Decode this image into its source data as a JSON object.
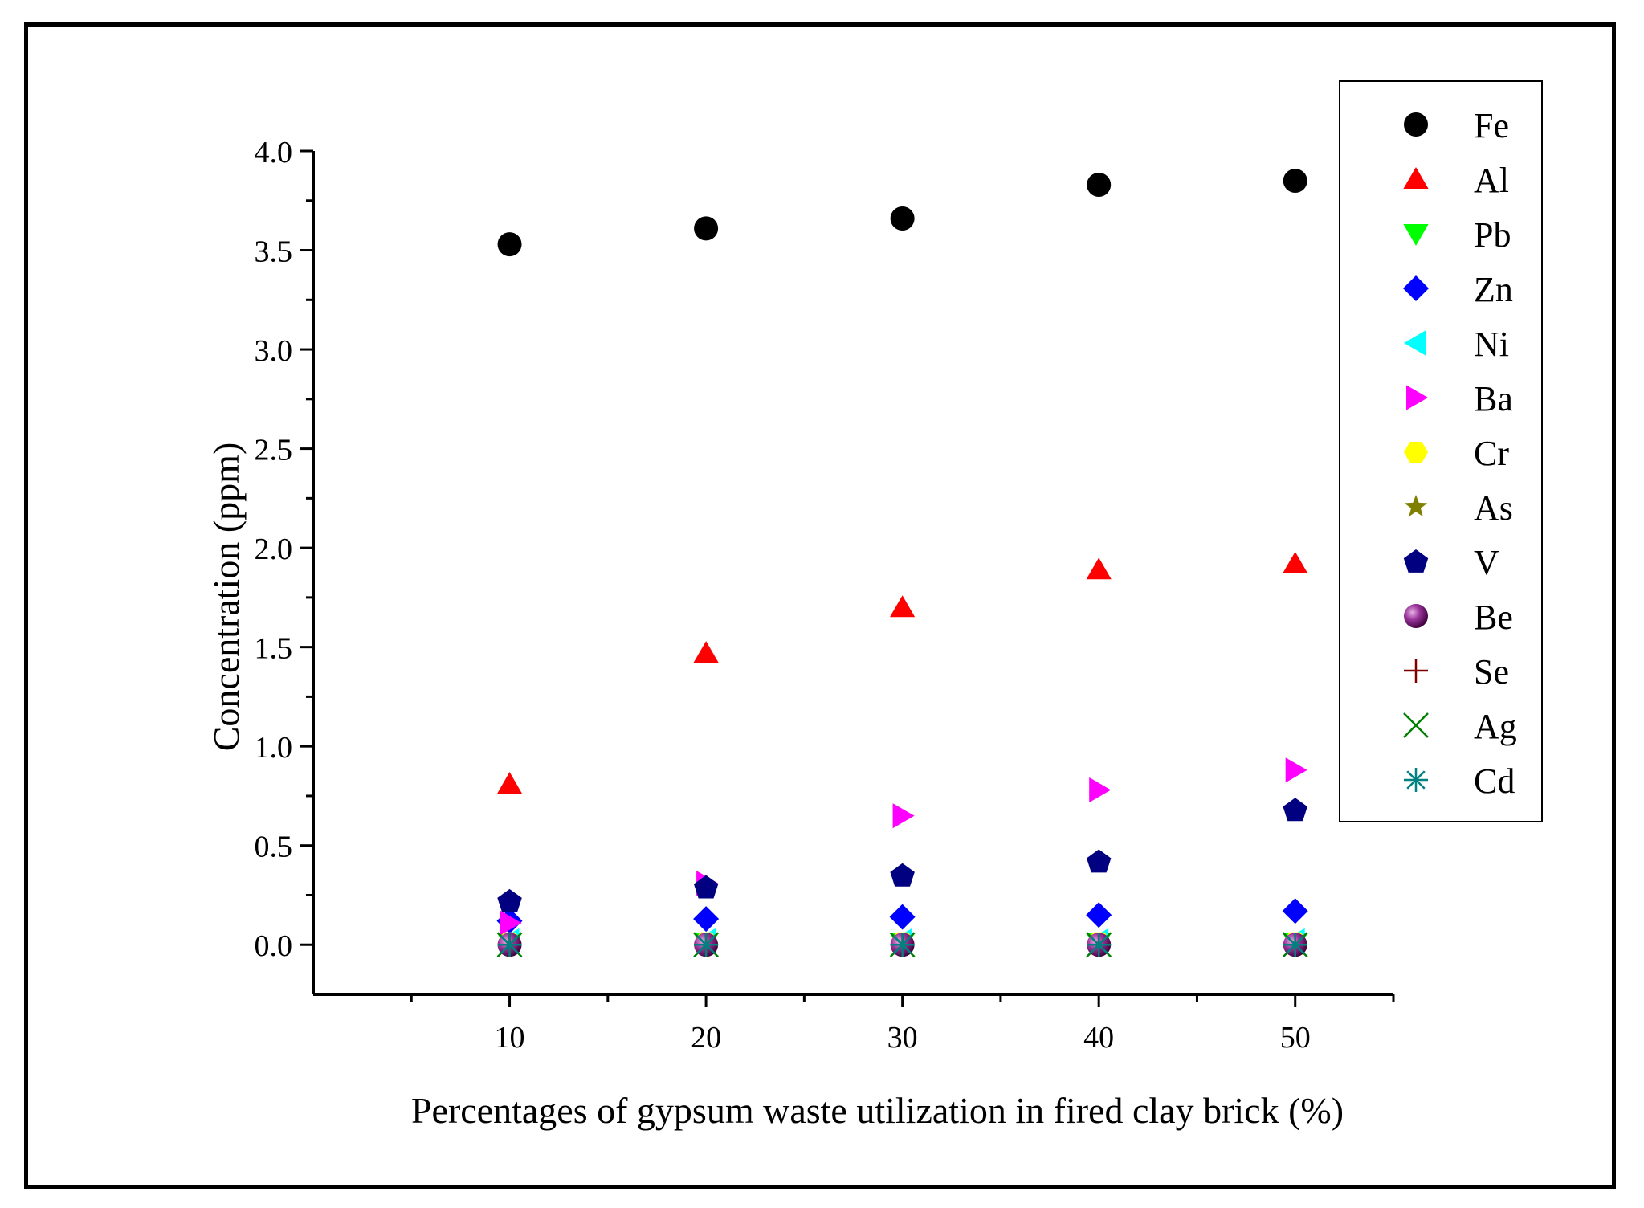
{
  "chart_data": {
    "type": "scatter",
    "title": "",
    "xlabel": "Percentages of gypsum waste utilization in fired clay brick (%)",
    "ylabel": "Concentration (ppm)",
    "xlim": [
      0,
      55
    ],
    "ylim": [
      -0.25,
      4.0
    ],
    "xticks": [
      10,
      20,
      30,
      40,
      50
    ],
    "xtick_labels": [
      "10",
      "20",
      "30",
      "40",
      "50"
    ],
    "yticks": [
      0.0,
      0.5,
      1.0,
      1.5,
      2.0,
      2.5,
      3.0,
      3.5,
      4.0
    ],
    "ytick_labels": [
      "0.0",
      "0.5",
      "1.0",
      "1.5",
      "2.0",
      "2.5",
      "3.0",
      "3.5",
      "4.0"
    ],
    "grid": false,
    "legend_position": "top-right",
    "x": [
      10,
      20,
      30,
      40,
      50
    ],
    "series": [
      {
        "name": "Fe",
        "marker": "circle",
        "color": "#000000",
        "values": [
          3.53,
          3.61,
          3.66,
          3.83,
          3.85
        ]
      },
      {
        "name": "Al",
        "marker": "triangle-up",
        "color": "#ff0000",
        "values": [
          0.81,
          1.47,
          1.7,
          1.89,
          1.92
        ]
      },
      {
        "name": "Pb",
        "marker": "triangle-down",
        "color": "#00ff00",
        "values": [
          0.01,
          0.01,
          0.01,
          0.01,
          0.01
        ]
      },
      {
        "name": "Zn",
        "marker": "diamond",
        "color": "#0000ff",
        "values": [
          0.12,
          0.13,
          0.14,
          0.15,
          0.17
        ]
      },
      {
        "name": "Ni",
        "marker": "triangle-left",
        "color": "#00ffff",
        "values": [
          0.02,
          0.02,
          0.02,
          0.02,
          0.02
        ]
      },
      {
        "name": "Ba",
        "marker": "triangle-right",
        "color": "#ff00ff",
        "values": [
          0.11,
          0.31,
          0.65,
          0.78,
          0.88
        ]
      },
      {
        "name": "Cr",
        "marker": "hexagon",
        "color": "#ffff00",
        "values": [
          0.01,
          0.01,
          0.01,
          0.01,
          0.01
        ]
      },
      {
        "name": "As",
        "marker": "star",
        "color": "#808000",
        "values": [
          0.0,
          0.0,
          0.0,
          0.0,
          0.0
        ]
      },
      {
        "name": "V",
        "marker": "pentagon",
        "color": "#000080",
        "values": [
          0.22,
          0.29,
          0.35,
          0.42,
          0.68
        ]
      },
      {
        "name": "Be",
        "marker": "sphere",
        "color": "#800080",
        "values": [
          0.0,
          0.0,
          0.0,
          0.0,
          0.0
        ]
      },
      {
        "name": "Se",
        "marker": "plus",
        "color": "#800000",
        "values": [
          0.0,
          0.0,
          0.0,
          0.0,
          0.0
        ]
      },
      {
        "name": "Ag",
        "marker": "x",
        "color": "#008000",
        "values": [
          0.0,
          0.0,
          0.0,
          0.0,
          0.0
        ]
      },
      {
        "name": "Cd",
        "marker": "asterisk",
        "color": "#008080",
        "values": [
          0.0,
          0.0,
          0.0,
          0.0,
          0.0
        ]
      }
    ]
  }
}
